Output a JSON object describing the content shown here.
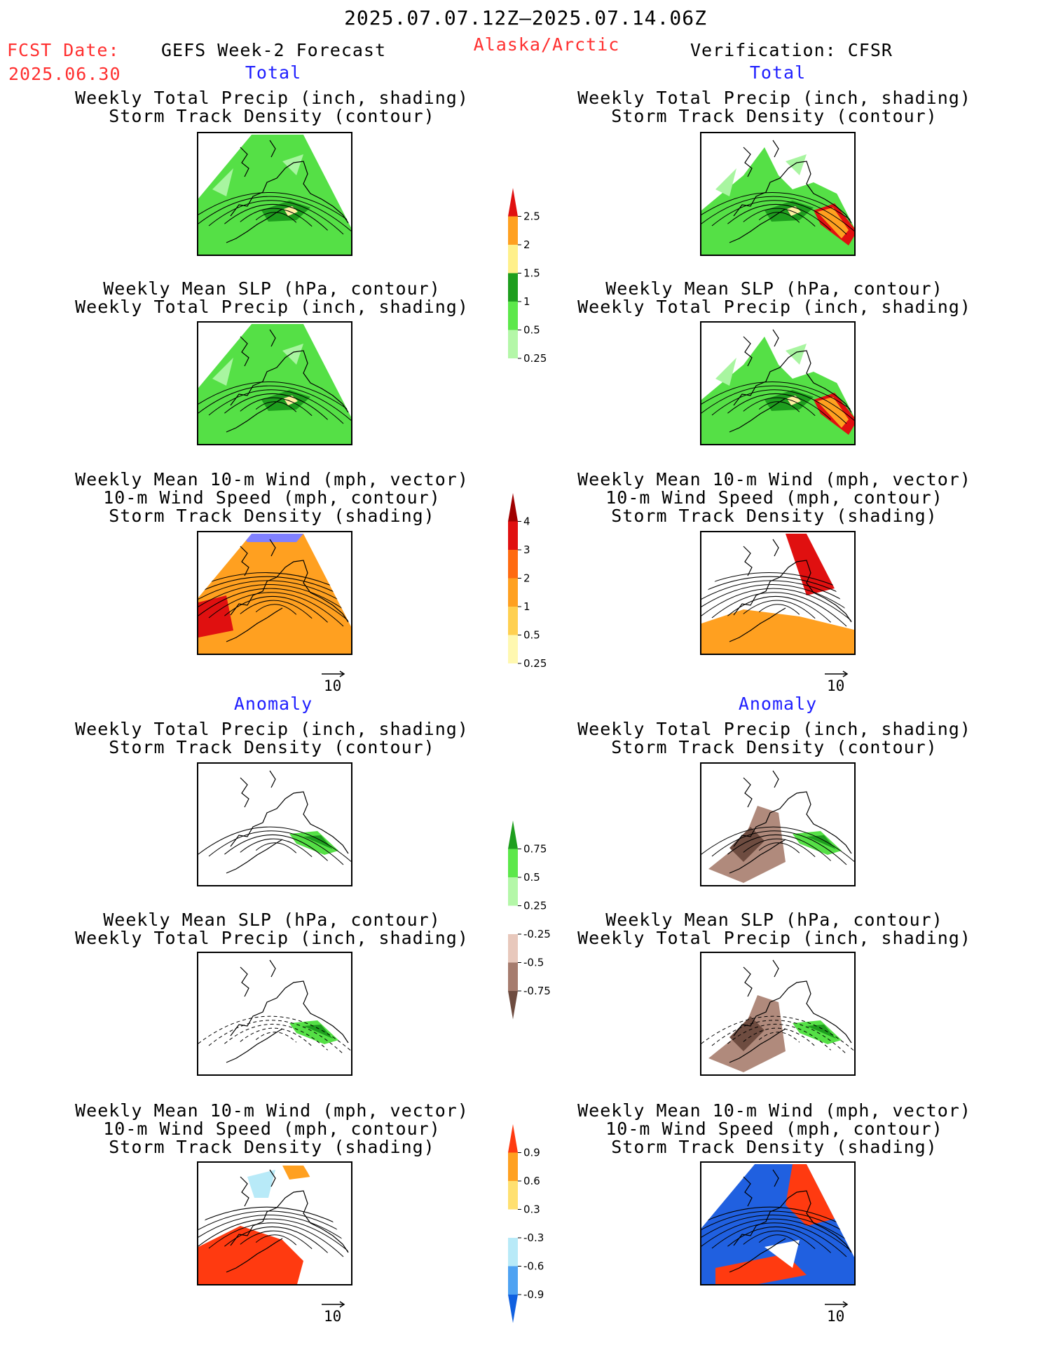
{
  "header": {
    "title": "2025.07.07.12Z–2025.07.14.06Z",
    "fcst_label": "FCST Date:",
    "fcst_date": "2025.06.30",
    "left_product": "GEFS Week-2 Forecast",
    "region": "Alaska/Arctic",
    "right_product": "Verification: CFSR"
  },
  "sections": {
    "total": "Total",
    "anomaly": "Anomaly"
  },
  "panels": {
    "p1_line1": "Weekly Total Precip (inch, shading)",
    "p1_line2": "Storm Track Density (contour)",
    "p2_line1": "Weekly Mean SLP (hPa, contour)",
    "p2_line2": "Weekly Total Precip (inch, shading)",
    "p3_line1": "Weekly Mean 10-m Wind (mph, vector)",
    "p3_line2": "10-m Wind Speed (mph, contour)",
    "p3_line3": "Storm Track Density (shading)"
  },
  "vector_ref": "10",
  "colors": {
    "red_text": "#ff3030",
    "blue_text": "#2020ff",
    "precip_light": "#a8f5a0",
    "precip_med": "#55e046",
    "precip_dark": "#1e9e1e",
    "brown_light": "#e8c8bc",
    "brown_dark": "#6e4c40",
    "storm_yellow": "#fff0a0",
    "storm_orange": "#ffa020",
    "storm_red": "#e01010",
    "anom_blue": "#2060e0",
    "anom_red": "#ff3a10"
  },
  "chart_data": [
    {
      "type": "heatmap",
      "name": "precip_total_colorbar",
      "colors": [
        "#ffffff",
        "#b4f7a8",
        "#5ce84a",
        "#1e9e1e",
        "#fff08a",
        "#ffa020",
        "#e01010"
      ],
      "ticks": [
        "0.25",
        "0.5",
        "1",
        "1.5",
        "2",
        "2.5"
      ]
    },
    {
      "type": "heatmap",
      "name": "storm_track_total_colorbar",
      "colors": [
        "#ffffff",
        "#fff8b0",
        "#ffd050",
        "#ffa020",
        "#ff6a10",
        "#e01010",
        "#a00000"
      ],
      "ticks": [
        "0.25",
        "0.5",
        "1",
        "2",
        "3",
        "4"
      ]
    },
    {
      "type": "heatmap",
      "name": "precip_anomaly_colorbar",
      "colors": [
        "#6e4c40",
        "#a67c6e",
        "#e8c8bc",
        "#ffffff",
        "#b4f7a8",
        "#5ce84a",
        "#1e9e1e"
      ],
      "ticks": [
        "-0.75",
        "-0.5",
        "-0.25",
        "0.25",
        "0.5",
        "0.75"
      ]
    },
    {
      "type": "heatmap",
      "name": "storm_track_anomaly_colorbar",
      "colors": [
        "#1060e0",
        "#4ea2f2",
        "#b8eaf8",
        "#ffffff",
        "#ffe070",
        "#ffa020",
        "#ff3a10"
      ],
      "ticks": [
        "-0.9",
        "-0.6",
        "-0.3",
        "0.3",
        "0.6",
        "0.9"
      ]
    }
  ]
}
